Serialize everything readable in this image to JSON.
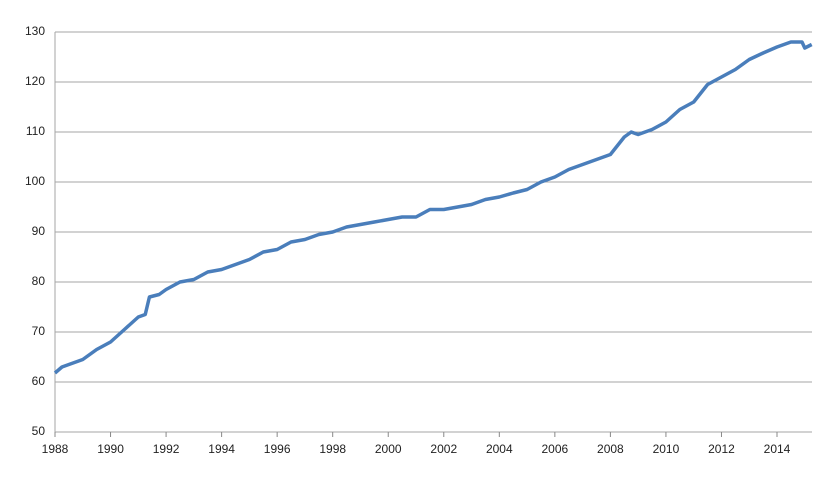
{
  "chart_data": {
    "type": "line",
    "x": [
      1988.0,
      1988.25,
      1988.5,
      1989.0,
      1989.5,
      1990.0,
      1990.5,
      1991.0,
      1991.25,
      1991.4,
      1991.75,
      1992.0,
      1992.5,
      1993.0,
      1993.5,
      1994.0,
      1994.5,
      1995.0,
      1995.5,
      1996.0,
      1996.5,
      1997.0,
      1997.5,
      1998.0,
      1998.5,
      1999.0,
      1999.5,
      2000.0,
      2000.5,
      2001.0,
      2001.5,
      2002.0,
      2002.5,
      2003.0,
      2003.5,
      2004.0,
      2004.5,
      2005.0,
      2005.5,
      2006.0,
      2006.5,
      2007.0,
      2007.5,
      2008.0,
      2008.5,
      2008.75,
      2009.0,
      2009.5,
      2010.0,
      2010.5,
      2011.0,
      2011.5,
      2012.0,
      2012.5,
      2013.0,
      2013.5,
      2014.0,
      2014.5,
      2014.9,
      2015.0,
      2015.25
    ],
    "series": [
      {
        "color": "#4a7ebb",
        "values": [
          61.8,
          63.0,
          63.5,
          64.5,
          66.5,
          68,
          70.5,
          73,
          73.5,
          77,
          77.5,
          78.5,
          80,
          80.5,
          82,
          82.5,
          83.5,
          84.5,
          86,
          86.5,
          88,
          88.5,
          89.5,
          90,
          91,
          91.5,
          92,
          92.5,
          93,
          93,
          94.5,
          94.5,
          95,
          95.5,
          96.5,
          97,
          97.8,
          98.5,
          100,
          101,
          102.5,
          103.5,
          104.5,
          105.5,
          109,
          110,
          109.5,
          110.5,
          112,
          114.5,
          116,
          119.5,
          121,
          122.5,
          124.5,
          125.8,
          127,
          128,
          128,
          126.8,
          127.5
        ]
      }
    ],
    "xlim": [
      1988,
      2015.26
    ],
    "xticks": [
      1988,
      1990,
      1992,
      1994,
      1996,
      1998,
      2000,
      2002,
      2004,
      2006,
      2008,
      2010,
      2012,
      2014
    ],
    "ylim": [
      50,
      130
    ],
    "yticks": [
      50,
      60,
      70,
      80,
      90,
      100,
      110,
      120,
      130
    ],
    "grid": true
  }
}
